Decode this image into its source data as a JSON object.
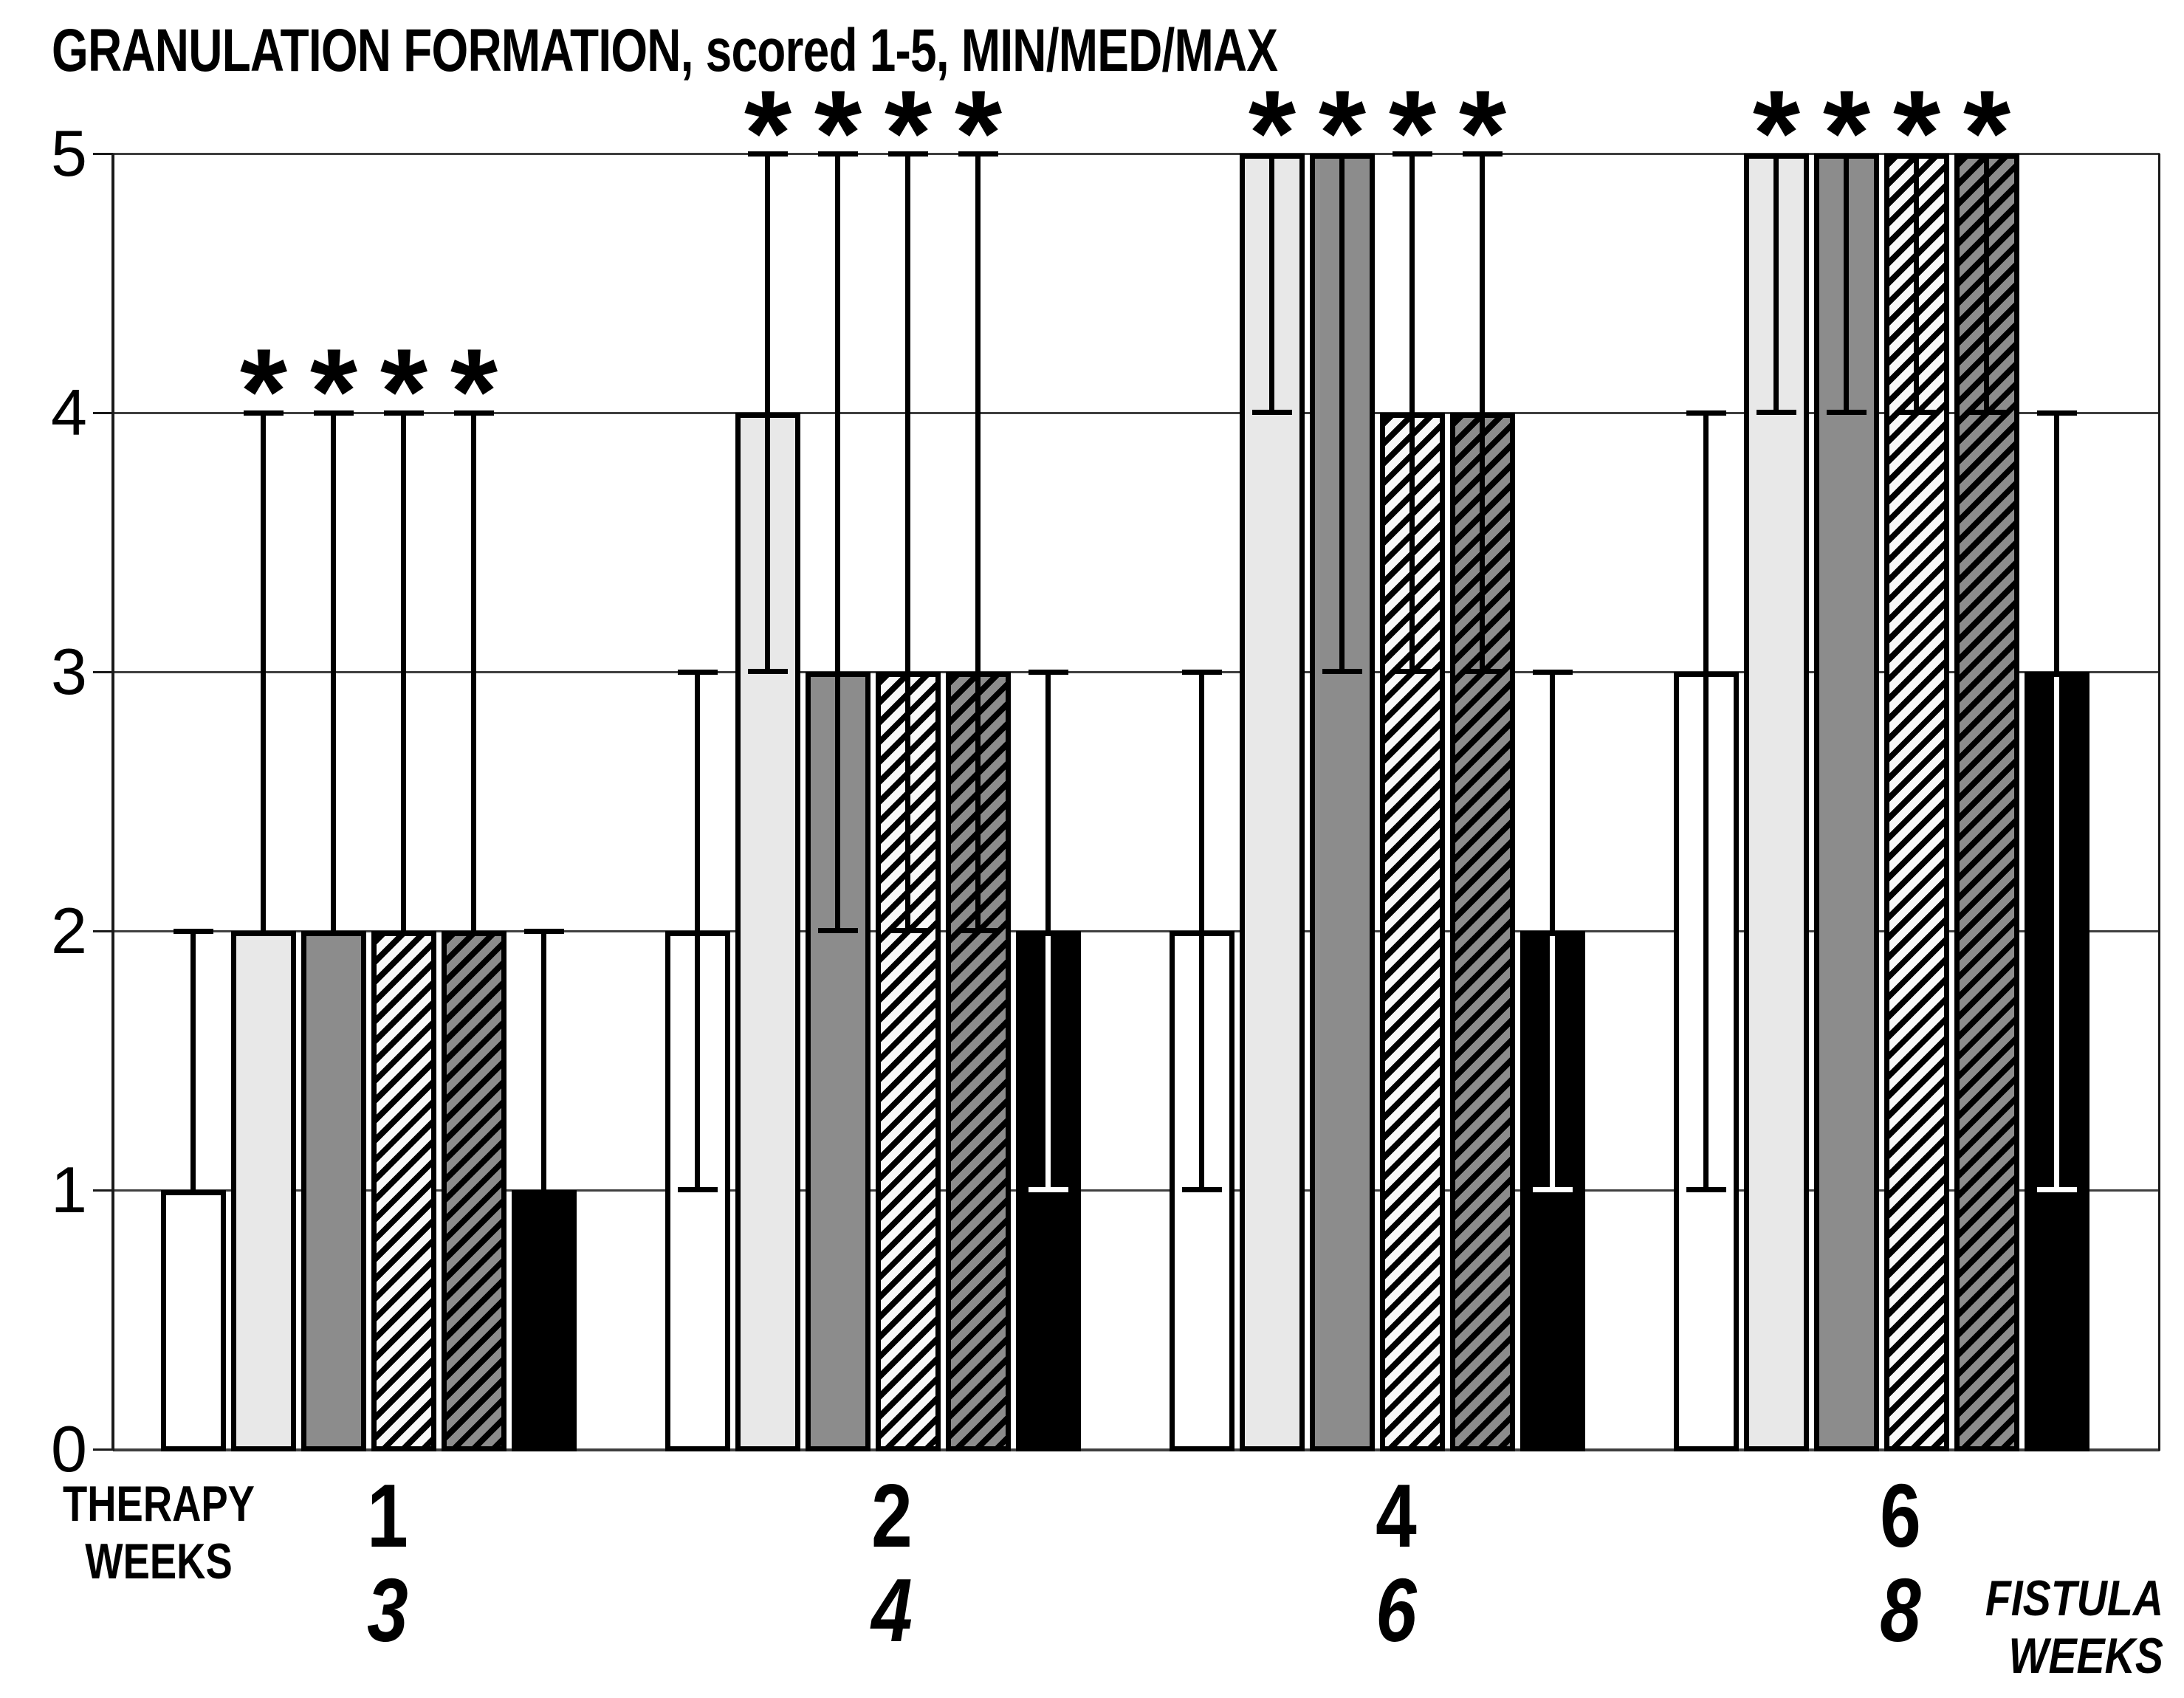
{
  "chart_data": {
    "type": "bar",
    "title": "GRANULATION FORMATION, scored 1-5, MIN/MED/MAX",
    "score_scale": "1-5",
    "statistic": "MIN/MED/MAX",
    "significance_marker": "*",
    "legend_position": "none",
    "y_axis": {
      "min": 0,
      "max": 5,
      "grid": true,
      "ticks": [
        "5",
        "4",
        "3",
        "2",
        "1",
        "0"
      ]
    },
    "x_axis": {
      "therapy_caption_line1": "THERAPY",
      "therapy_caption_line2": "WEEKS",
      "fistula_caption_line1": "FISTULA",
      "fistula_caption_line2": "WEEKS",
      "therapy_weeks": [
        "1",
        "2",
        "4",
        "6"
      ],
      "fistula_weeks": [
        "3",
        "4",
        "6",
        "8"
      ]
    },
    "series": [
      {
        "name": "white-bar",
        "pattern": "solid",
        "fill": "#ffffff",
        "stripe": "",
        "median": [
          1,
          2,
          2,
          3
        ],
        "min": [
          1,
          1,
          1,
          1
        ],
        "max": [
          2,
          3,
          3,
          4
        ],
        "significant": [
          false,
          false,
          false,
          false
        ]
      },
      {
        "name": "light-gray-bar",
        "pattern": "solid",
        "fill": "#e8e8e8",
        "stripe": "",
        "median": [
          2,
          4,
          5,
          5
        ],
        "min": [
          2,
          3,
          4,
          4
        ],
        "max": [
          4,
          5,
          5,
          5
        ],
        "significant": [
          true,
          true,
          true,
          true
        ]
      },
      {
        "name": "gray-bar",
        "pattern": "solid",
        "fill": "#8c8c8c",
        "stripe": "",
        "median": [
          2,
          3,
          5,
          5
        ],
        "min": [
          2,
          2,
          3,
          4
        ],
        "max": [
          4,
          5,
          5,
          5
        ],
        "significant": [
          true,
          true,
          true,
          true
        ]
      },
      {
        "name": "light-diagonal-hatch-bar",
        "pattern": "diagonal-hatch",
        "fill": "#f8f8f8",
        "stripe": "#000000",
        "median": [
          2,
          3,
          4,
          5
        ],
        "min": [
          2,
          2,
          3,
          4
        ],
        "max": [
          4,
          5,
          5,
          5
        ],
        "significant": [
          true,
          true,
          true,
          true
        ]
      },
      {
        "name": "dark-diagonal-hatch-bar",
        "pattern": "diagonal-hatch",
        "fill": "#8c8c8c",
        "stripe": "#000000",
        "median": [
          2,
          3,
          4,
          5
        ],
        "min": [
          2,
          2,
          3,
          4
        ],
        "max": [
          4,
          5,
          5,
          5
        ],
        "significant": [
          true,
          true,
          true,
          true
        ]
      },
      {
        "name": "black-bar",
        "pattern": "solid",
        "fill": "#000000",
        "stripe": "",
        "median": [
          1,
          2,
          2,
          3
        ],
        "min": [
          1,
          1,
          1,
          1
        ],
        "max": [
          2,
          3,
          3,
          4
        ],
        "significant": [
          false,
          false,
          false,
          false
        ]
      }
    ]
  }
}
